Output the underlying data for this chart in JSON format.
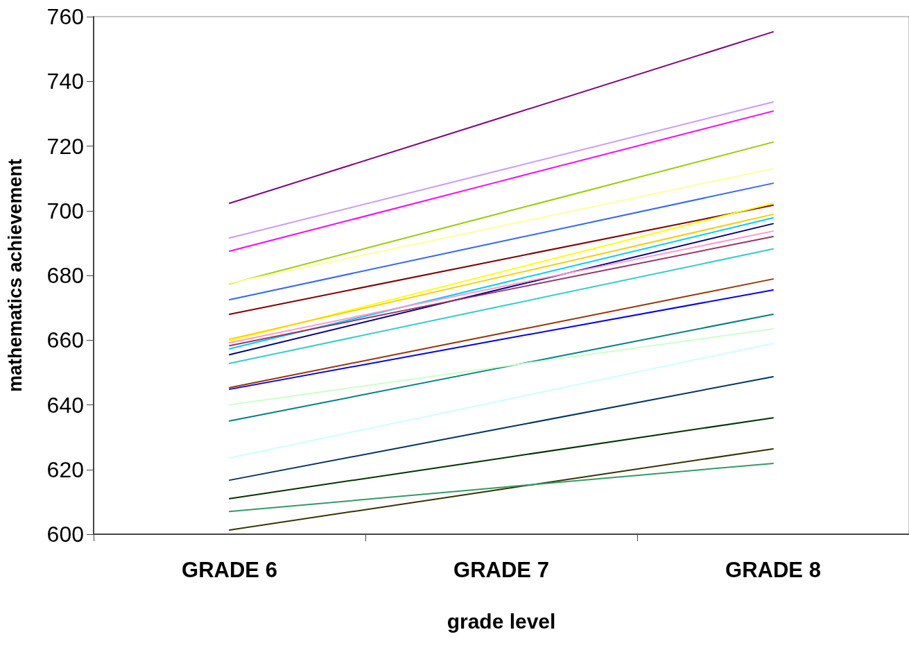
{
  "chart_data": {
    "type": "line",
    "xlabel": "grade level",
    "ylabel": "mathematics achievement",
    "categories": [
      "GRADE 6",
      "GRADE 7",
      "GRADE 8"
    ],
    "ylim": [
      600,
      760
    ],
    "yticks": [
      600,
      620,
      640,
      660,
      680,
      700,
      720,
      740,
      760
    ],
    "grid": false,
    "marker": "none",
    "line_style": "solid",
    "series": [
      {
        "color": "#800080",
        "values": [
          702.3,
          728.8,
          755.3
        ]
      },
      {
        "color": "#cc99ff",
        "values": [
          691.6,
          712.6,
          733.6
        ]
      },
      {
        "color": "#ff00ff",
        "values": [
          687.5,
          709.2,
          730.8
        ]
      },
      {
        "color": "#99cc00",
        "values": [
          677.4,
          699.3,
          721.2
        ]
      },
      {
        "color": "#ffff99",
        "values": [
          677.6,
          695.3,
          713.0
        ]
      },
      {
        "color": "#3366ff",
        "values": [
          672.5,
          690.5,
          708.5
        ]
      },
      {
        "color": "#800000",
        "values": [
          668.0,
          684.9,
          701.7
        ]
      },
      {
        "color": "#ffff00",
        "values": [
          659.8,
          681.1,
          702.3
        ]
      },
      {
        "color": "#ffcc00",
        "values": [
          660.3,
          679.6,
          698.9
        ]
      },
      {
        "color": "#00ccff",
        "values": [
          657.3,
          677.6,
          697.8
        ]
      },
      {
        "color": "#000080",
        "values": [
          655.5,
          675.8,
          696.0
        ]
      },
      {
        "color": "#ff99cc",
        "values": [
          659.2,
          676.5,
          693.7
        ]
      },
      {
        "color": "#993366",
        "values": [
          658.3,
          675.2,
          692.0
        ]
      },
      {
        "color": "#33cccc",
        "values": [
          652.8,
          670.5,
          688.2
        ]
      },
      {
        "color": "#993300",
        "values": [
          645.3,
          662.1,
          678.9
        ]
      },
      {
        "color": "#0000ff",
        "values": [
          644.8,
          660.2,
          675.5
        ]
      },
      {
        "color": "#008080",
        "values": [
          635.0,
          651.5,
          668.0
        ]
      },
      {
        "color": "#ccffcc",
        "values": [
          640.0,
          651.8,
          663.5
        ]
      },
      {
        "color": "#ccffff",
        "values": [
          623.6,
          641.3,
          659.0
        ]
      },
      {
        "color": "#003366",
        "values": [
          616.7,
          632.7,
          648.7
        ]
      },
      {
        "color": "#003300",
        "values": [
          611.0,
          623.5,
          636.0
        ]
      },
      {
        "color": "#333300",
        "values": [
          601.3,
          613.9,
          626.4
        ]
      },
      {
        "color": "#339966",
        "values": [
          607.0,
          614.5,
          621.9
        ]
      }
    ]
  }
}
